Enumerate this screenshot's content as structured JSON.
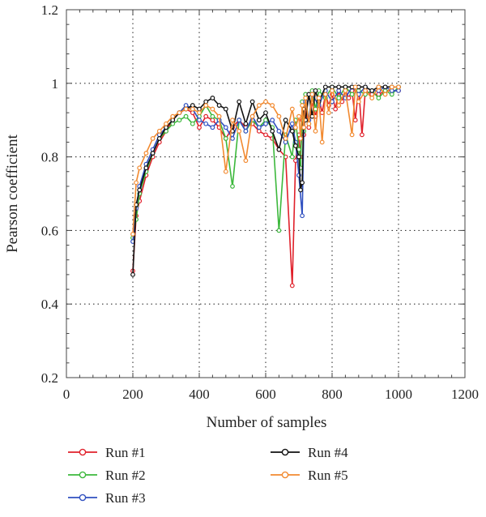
{
  "chart_data": {
    "type": "line",
    "xlabel": "Number of samples",
    "ylabel": "Pearson coefficient",
    "xlim": [
      0,
      1200
    ],
    "ylim": [
      0.2,
      1.2
    ],
    "xticks": [
      0,
      200,
      400,
      600,
      800,
      1000,
      1200
    ],
    "yticks": [
      0.2,
      0.4,
      0.6,
      0.8,
      1,
      1.2
    ],
    "xtick_labels": [
      "0",
      "200",
      "400",
      "600",
      "800",
      "1000",
      "1200"
    ],
    "ytick_labels": [
      "0.2",
      "0.4",
      "0.6",
      "0.8",
      "1",
      "1.2"
    ],
    "grid": "dotted, at major ticks",
    "legend_position": "bottom",
    "series": [
      {
        "name": "Run #1",
        "color": "#e0202a",
        "points": [
          [
            200,
            0.49
          ],
          [
            210,
            0.64
          ],
          [
            220,
            0.68
          ],
          [
            240,
            0.75
          ],
          [
            260,
            0.8
          ],
          [
            280,
            0.84
          ],
          [
            300,
            0.87
          ],
          [
            320,
            0.9
          ],
          [
            340,
            0.92
          ],
          [
            360,
            0.93
          ],
          [
            380,
            0.92
          ],
          [
            400,
            0.88
          ],
          [
            420,
            0.91
          ],
          [
            440,
            0.9
          ],
          [
            460,
            0.88
          ],
          [
            480,
            0.85
          ],
          [
            500,
            0.88
          ],
          [
            520,
            0.9
          ],
          [
            540,
            0.88
          ],
          [
            560,
            0.89
          ],
          [
            580,
            0.87
          ],
          [
            600,
            0.86
          ],
          [
            620,
            0.85
          ],
          [
            640,
            0.82
          ],
          [
            660,
            0.8
          ],
          [
            680,
            0.45
          ],
          [
            690,
            0.79
          ],
          [
            700,
            0.86
          ],
          [
            705,
            0.8
          ],
          [
            710,
            0.9
          ],
          [
            715,
            0.86
          ],
          [
            720,
            0.93
          ],
          [
            730,
            0.88
          ],
          [
            740,
            0.95
          ],
          [
            750,
            0.91
          ],
          [
            760,
            0.96
          ],
          [
            770,
            0.92
          ],
          [
            780,
            0.97
          ],
          [
            790,
            0.94
          ],
          [
            800,
            0.97
          ],
          [
            810,
            0.93
          ],
          [
            820,
            0.98
          ],
          [
            830,
            0.95
          ],
          [
            840,
            0.98
          ],
          [
            850,
            0.96
          ],
          [
            860,
            0.98
          ],
          [
            870,
            0.9
          ],
          [
            880,
            0.99
          ],
          [
            890,
            0.86
          ],
          [
            900,
            0.98
          ],
          [
            920,
            0.97
          ],
          [
            940,
            0.97
          ],
          [
            960,
            0.98
          ],
          [
            980,
            0.98
          ],
          [
            1000,
            0.98
          ]
        ]
      },
      {
        "name": "Run #2",
        "color": "#3cb83c",
        "points": [
          [
            200,
            0.58
          ],
          [
            210,
            0.63
          ],
          [
            220,
            0.7
          ],
          [
            240,
            0.76
          ],
          [
            260,
            0.81
          ],
          [
            280,
            0.85
          ],
          [
            300,
            0.87
          ],
          [
            320,
            0.89
          ],
          [
            340,
            0.9
          ],
          [
            360,
            0.91
          ],
          [
            380,
            0.89
          ],
          [
            400,
            0.91
          ],
          [
            420,
            0.94
          ],
          [
            440,
            0.91
          ],
          [
            460,
            0.9
          ],
          [
            480,
            0.85
          ],
          [
            500,
            0.72
          ],
          [
            520,
            0.9
          ],
          [
            540,
            0.87
          ],
          [
            560,
            0.9
          ],
          [
            580,
            0.88
          ],
          [
            600,
            0.9
          ],
          [
            620,
            0.88
          ],
          [
            640,
            0.6
          ],
          [
            660,
            0.86
          ],
          [
            680,
            0.8
          ],
          [
            690,
            0.9
          ],
          [
            700,
            0.82
          ],
          [
            705,
            0.77
          ],
          [
            710,
            0.95
          ],
          [
            715,
            0.87
          ],
          [
            720,
            0.97
          ],
          [
            730,
            0.89
          ],
          [
            740,
            0.98
          ],
          [
            750,
            0.93
          ],
          [
            760,
            0.98
          ],
          [
            780,
            0.96
          ],
          [
            800,
            0.99
          ],
          [
            820,
            0.96
          ],
          [
            840,
            0.99
          ],
          [
            860,
            0.97
          ],
          [
            880,
            0.98
          ],
          [
            900,
            0.97
          ],
          [
            920,
            0.98
          ],
          [
            940,
            0.96
          ],
          [
            960,
            0.98
          ],
          [
            980,
            0.97
          ],
          [
            1000,
            0.99
          ]
        ]
      },
      {
        "name": "Run #3",
        "color": "#3050c0",
        "points": [
          [
            200,
            0.57
          ],
          [
            210,
            0.66
          ],
          [
            220,
            0.72
          ],
          [
            240,
            0.78
          ],
          [
            260,
            0.82
          ],
          [
            280,
            0.86
          ],
          [
            300,
            0.88
          ],
          [
            320,
            0.9
          ],
          [
            340,
            0.92
          ],
          [
            360,
            0.94
          ],
          [
            380,
            0.93
          ],
          [
            400,
            0.9
          ],
          [
            420,
            0.89
          ],
          [
            440,
            0.88
          ],
          [
            460,
            0.9
          ],
          [
            480,
            0.88
          ],
          [
            500,
            0.85
          ],
          [
            520,
            0.9
          ],
          [
            540,
            0.87
          ],
          [
            560,
            0.91
          ],
          [
            580,
            0.88
          ],
          [
            600,
            0.89
          ],
          [
            620,
            0.9
          ],
          [
            640,
            0.87
          ],
          [
            660,
            0.84
          ],
          [
            680,
            0.89
          ],
          [
            690,
            0.84
          ],
          [
            700,
            0.75
          ],
          [
            710,
            0.64
          ],
          [
            715,
            0.88
          ],
          [
            720,
            0.95
          ],
          [
            730,
            0.9
          ],
          [
            740,
            0.97
          ],
          [
            760,
            0.94
          ],
          [
            780,
            0.98
          ],
          [
            800,
            0.95
          ],
          [
            820,
            0.98
          ],
          [
            840,
            0.96
          ],
          [
            860,
            0.99
          ],
          [
            880,
            0.97
          ],
          [
            900,
            0.99
          ],
          [
            920,
            0.98
          ],
          [
            940,
            0.98
          ],
          [
            960,
            0.99
          ],
          [
            980,
            0.98
          ],
          [
            1000,
            0.98
          ]
        ]
      },
      {
        "name": "Run #4",
        "color": "#111111",
        "points": [
          [
            200,
            0.48
          ],
          [
            210,
            0.67
          ],
          [
            220,
            0.71
          ],
          [
            240,
            0.77
          ],
          [
            260,
            0.81
          ],
          [
            280,
            0.85
          ],
          [
            300,
            0.88
          ],
          [
            320,
            0.9
          ],
          [
            340,
            0.92
          ],
          [
            360,
            0.93
          ],
          [
            380,
            0.94
          ],
          [
            400,
            0.93
          ],
          [
            420,
            0.95
          ],
          [
            440,
            0.96
          ],
          [
            460,
            0.94
          ],
          [
            480,
            0.93
          ],
          [
            500,
            0.87
          ],
          [
            520,
            0.95
          ],
          [
            540,
            0.89
          ],
          [
            560,
            0.95
          ],
          [
            580,
            0.9
          ],
          [
            600,
            0.92
          ],
          [
            620,
            0.87
          ],
          [
            640,
            0.82
          ],
          [
            660,
            0.9
          ],
          [
            680,
            0.87
          ],
          [
            690,
            0.83
          ],
          [
            700,
            0.8
          ],
          [
            705,
            0.71
          ],
          [
            710,
            0.73
          ],
          [
            715,
            0.93
          ],
          [
            720,
            0.9
          ],
          [
            730,
            0.97
          ],
          [
            740,
            0.91
          ],
          [
            750,
            0.98
          ],
          [
            760,
            0.95
          ],
          [
            780,
            0.99
          ],
          [
            800,
            0.99
          ],
          [
            820,
            0.99
          ],
          [
            840,
            0.99
          ],
          [
            860,
            0.99
          ],
          [
            880,
            0.99
          ],
          [
            900,
            0.99
          ],
          [
            920,
            0.98
          ],
          [
            940,
            0.99
          ],
          [
            960,
            0.99
          ],
          [
            980,
            0.99
          ],
          [
            1000,
            0.99
          ]
        ]
      },
      {
        "name": "Run #5",
        "color": "#f28a30",
        "points": [
          [
            200,
            0.59
          ],
          [
            210,
            0.73
          ],
          [
            220,
            0.77
          ],
          [
            240,
            0.81
          ],
          [
            260,
            0.85
          ],
          [
            280,
            0.87
          ],
          [
            300,
            0.89
          ],
          [
            320,
            0.91
          ],
          [
            340,
            0.92
          ],
          [
            360,
            0.93
          ],
          [
            380,
            0.93
          ],
          [
            400,
            0.92
          ],
          [
            420,
            0.94
          ],
          [
            440,
            0.93
          ],
          [
            460,
            0.91
          ],
          [
            480,
            0.76
          ],
          [
            500,
            0.9
          ],
          [
            520,
            0.87
          ],
          [
            540,
            0.79
          ],
          [
            560,
            0.91
          ],
          [
            580,
            0.94
          ],
          [
            600,
            0.95
          ],
          [
            620,
            0.94
          ],
          [
            640,
            0.91
          ],
          [
            660,
            0.85
          ],
          [
            680,
            0.93
          ],
          [
            690,
            0.88
          ],
          [
            700,
            0.91
          ],
          [
            705,
            0.85
          ],
          [
            710,
            0.94
          ],
          [
            715,
            0.88
          ],
          [
            720,
            0.96
          ],
          [
            730,
            0.89
          ],
          [
            740,
            0.97
          ],
          [
            750,
            0.87
          ],
          [
            760,
            0.96
          ],
          [
            770,
            0.84
          ],
          [
            780,
            0.97
          ],
          [
            790,
            0.92
          ],
          [
            800,
            0.98
          ],
          [
            820,
            0.94
          ],
          [
            840,
            0.98
          ],
          [
            860,
            0.86
          ],
          [
            870,
            0.99
          ],
          [
            880,
            0.95
          ],
          [
            900,
            0.98
          ],
          [
            920,
            0.96
          ],
          [
            940,
            0.99
          ],
          [
            960,
            0.97
          ],
          [
            980,
            0.99
          ],
          [
            1000,
            0.99
          ]
        ]
      }
    ]
  }
}
